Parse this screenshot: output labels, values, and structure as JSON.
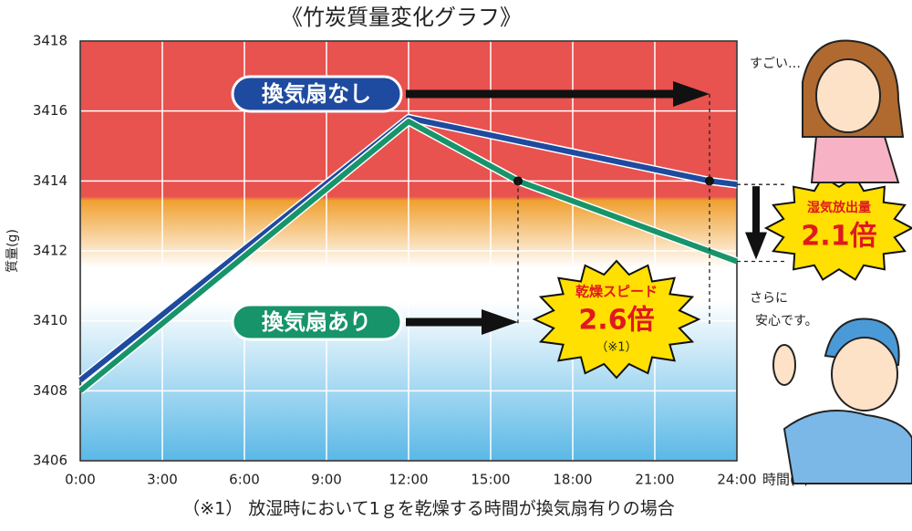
{
  "chart_data": {
    "type": "line",
    "title": "《竹炭質量変化グラフ》",
    "y_label": "質量(g)",
    "x_label": "時間(h)",
    "xlim": [
      0,
      24
    ],
    "xticks": [
      {
        "value": 0,
        "label": "0:00"
      },
      {
        "value": 3,
        "label": "3:00"
      },
      {
        "value": 6,
        "label": "6:00"
      },
      {
        "value": 9,
        "label": "9:00"
      },
      {
        "value": 12,
        "label": "12:00"
      },
      {
        "value": 15,
        "label": "15:00"
      },
      {
        "value": 18,
        "label": "18:00"
      },
      {
        "value": 21,
        "label": "21:00"
      },
      {
        "value": 24,
        "label": "24:00"
      }
    ],
    "ylim": [
      3406,
      3418
    ],
    "yticks": [
      3406,
      3408,
      3410,
      3412,
      3414,
      3416,
      3418
    ],
    "grid": true,
    "series": [
      {
        "name": "換気扇なし",
        "color": "#1e4aa0",
        "x": [
          0,
          12,
          23,
          24
        ],
        "values": [
          3408.3,
          3415.8,
          3414.0,
          3413.9
        ]
      },
      {
        "name": "換気扇あり",
        "color": "#17946a",
        "x": [
          0,
          12,
          16,
          24
        ],
        "values": [
          3408.0,
          3415.7,
          3414.0,
          3411.7
        ]
      }
    ],
    "annotations": {
      "speed_label": "乾燥スピード",
      "speed_value": "2.6倍",
      "speed_note": "（※1）",
      "moisture_label": "湿気放出量",
      "moisture_value": "2.1倍",
      "speech_woman": "すごい…",
      "speech_man_1": "さらに",
      "speech_man_2": "安心です。"
    },
    "footnote": "（※1） 放湿時において1ｇを乾燥する時間が換気扇有りの場合"
  }
}
